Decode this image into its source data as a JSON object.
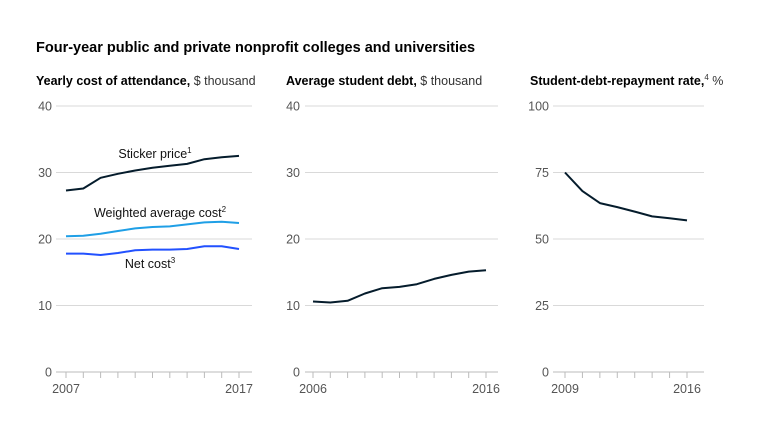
{
  "title": "Four-year public and private nonprofit colleges and universities",
  "chart_data": [
    {
      "type": "line",
      "title_bold": "Yearly cost of attendance,",
      "title_unit": " $ thousand",
      "x": [
        2007,
        2008,
        2009,
        2010,
        2011,
        2012,
        2013,
        2014,
        2015,
        2016,
        2017
      ],
      "xticks": [
        "2007",
        "2017"
      ],
      "ylim": [
        0,
        40
      ],
      "yticks": [
        "0",
        "10",
        "20",
        "30",
        "40"
      ],
      "grid": true,
      "series": [
        {
          "name": "Sticker price",
          "footnote": "1",
          "color": "#051c2c",
          "values": [
            27.3,
            27.6,
            29.2,
            29.8,
            30.3,
            30.7,
            31.0,
            31.3,
            32.0,
            32.3,
            32.5
          ]
        },
        {
          "name": "Weighted average cost",
          "footnote": "2",
          "color": "#1f9fe6",
          "values": [
            20.4,
            20.5,
            20.8,
            21.2,
            21.6,
            21.8,
            21.9,
            22.2,
            22.5,
            22.6,
            22.4
          ]
        },
        {
          "name": "Net cost",
          "footnote": "3",
          "color": "#2251ff",
          "values": [
            17.8,
            17.8,
            17.6,
            17.9,
            18.3,
            18.4,
            18.4,
            18.5,
            18.9,
            18.9,
            18.5
          ]
        }
      ]
    },
    {
      "type": "line",
      "title_bold": "Average student debt,",
      "title_unit": " $ thousand",
      "x": [
        2006,
        2007,
        2008,
        2009,
        2010,
        2011,
        2012,
        2013,
        2014,
        2015,
        2016
      ],
      "xticks": [
        "2006",
        "2016"
      ],
      "ylim": [
        0,
        40
      ],
      "yticks": [
        "0",
        "10",
        "20",
        "30",
        "40"
      ],
      "grid": true,
      "series": [
        {
          "color": "#051c2c",
          "values": [
            10.6,
            10.45,
            10.7,
            11.8,
            12.6,
            12.8,
            13.2,
            14.0,
            14.6,
            15.1,
            15.3
          ]
        }
      ]
    },
    {
      "type": "line",
      "title_bold": "Student-debt-repayment rate,",
      "title_footnote": "4",
      "title_unit": " %",
      "x": [
        2009,
        2010,
        2011,
        2012,
        2013,
        2014,
        2015,
        2016
      ],
      "xticks": [
        "2009",
        "2016"
      ],
      "ylim": [
        0,
        100
      ],
      "yticks": [
        "0",
        "25",
        "50",
        "75",
        "100"
      ],
      "grid": true,
      "series": [
        {
          "color": "#051c2c",
          "values": [
            75,
            68,
            63.5,
            62,
            60.3,
            58.5,
            57.8,
            57
          ]
        }
      ]
    }
  ]
}
